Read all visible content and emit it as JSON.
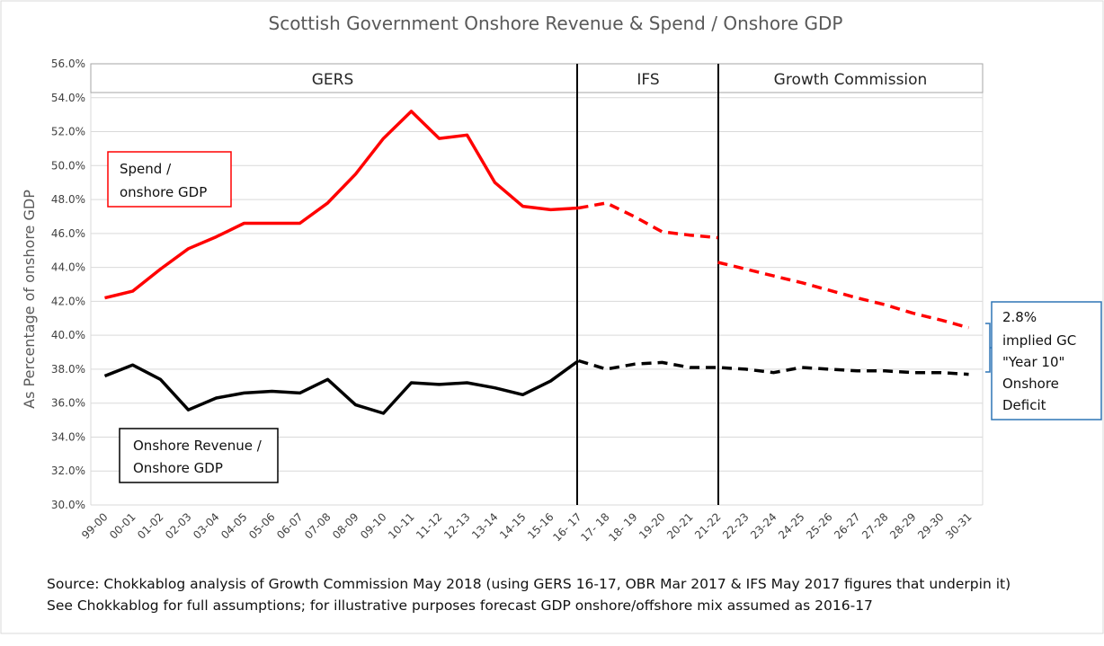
{
  "chart_data": {
    "type": "line",
    "title": "Scottish Government Onshore Revenue & Spend / Onshore GDP",
    "ylabel": "As Percentage of onshore GDP",
    "xlabel": "",
    "ylim": [
      30,
      56
    ],
    "ytick_step": 2,
    "ytick_labels": [
      "30.0%",
      "32.0%",
      "34.0%",
      "36.0%",
      "38.0%",
      "40.0%",
      "42.0%",
      "44.0%",
      "46.0%",
      "48.0%",
      "50.0%",
      "52.0%",
      "54.0%",
      "56.0%"
    ],
    "categories": [
      "99-00",
      "00-01",
      "01-02",
      "02-03",
      "03-04",
      "04-05",
      "05-06",
      "06-07",
      "07-08",
      "08-09",
      "09-10",
      "10-11",
      "11-12",
      "12-13",
      "13-14",
      "14-15",
      "15-16",
      "16- 17",
      "17- 18",
      "18- 19",
      "19-20",
      "20-21",
      "21-22",
      "22-23",
      "23-24",
      "24-25",
      "25-26",
      "26-27",
      "27-28",
      "28-29",
      "29-30",
      "30-31"
    ],
    "period_labels": [
      "GERS",
      "IFS",
      "Growth Commission"
    ],
    "series": [
      {
        "name": "Spend / onshore GDP",
        "color": "#ff0000",
        "segments": [
          {
            "style": "solid",
            "start": 0,
            "values": [
              42.2,
              42.6,
              43.9,
              45.1,
              45.8,
              46.6,
              46.6,
              46.6,
              47.8,
              49.5,
              51.6,
              53.2,
              51.6,
              51.8,
              49.0,
              47.6,
              47.4,
              47.5
            ]
          },
          {
            "style": "dashed",
            "start": 17,
            "values": [
              47.5,
              47.8,
              47.0,
              46.1,
              45.9,
              45.75
            ]
          },
          {
            "style": "dashed",
            "start": 22,
            "values": [
              44.3,
              43.9,
              43.5,
              43.1,
              42.65,
              42.2,
              41.8,
              41.3,
              40.9,
              40.45
            ]
          }
        ]
      },
      {
        "name": "Onshore Revenue / Onshore GDP",
        "color": "#000000",
        "segments": [
          {
            "style": "solid",
            "start": 0,
            "values": [
              37.6,
              38.25,
              37.4,
              35.6,
              36.3,
              36.6,
              36.7,
              36.6,
              37.4,
              35.9,
              35.4,
              37.2,
              37.1,
              37.2,
              36.9,
              36.5,
              37.3,
              38.5
            ]
          },
          {
            "style": "dashed",
            "start": 17,
            "values": [
              38.5,
              38.0,
              38.3,
              38.4,
              38.1,
              38.1,
              38.0,
              37.8,
              38.1,
              38.0,
              37.9,
              37.9,
              37.8,
              37.8,
              37.7
            ]
          }
        ]
      }
    ],
    "annotations": {
      "spend_label": [
        "Spend /",
        "onshore GDP"
      ],
      "revenue_label": [
        "Onshore Revenue /",
        "Onshore GDP"
      ],
      "deficit_label": [
        "2.8%",
        "implied GC",
        "\"Year 10\"",
        "Onshore",
        "Deficit"
      ]
    }
  },
  "source_lines": [
    "Source: Chokkablog analysis of Growth Commission May 2018 (using GERS 16-17, OBR Mar 2017 & IFS May 2017 figures that underpin it)",
    "See Chokkablog for full assumptions; for illustrative purposes forecast GDP onshore/offshore mix assumed as 2016-17"
  ]
}
